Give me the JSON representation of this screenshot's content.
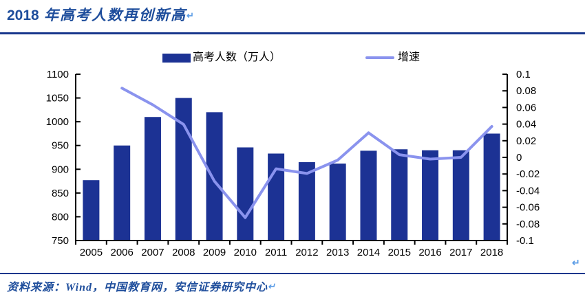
{
  "title": {
    "prefix": "2018",
    "rest": " 年高考人数再创新高",
    "return_mark": "↵"
  },
  "legend": {
    "bar_label": "高考人数（万人）",
    "line_label": "增速"
  },
  "source": {
    "label": "资料来源：Wind，中国教育网，安信证券研究中心",
    "return_mark": "↵"
  },
  "page_return_mark": "↵",
  "colors": {
    "bar": "#1c3294",
    "line": "#8a93ee",
    "accent_text": "#1f4e9c",
    "rule": "#17368c",
    "return_mark": "#5b9ce6",
    "axis": "#000000"
  },
  "chart_data": {
    "type": "bar+line",
    "title": "2018 年高考人数再创新高",
    "categories": [
      "2005",
      "2006",
      "2007",
      "2008",
      "2009",
      "2010",
      "2011",
      "2012",
      "2013",
      "2014",
      "2015",
      "2016",
      "2017",
      "2018"
    ],
    "series": [
      {
        "name": "高考人数（万人）",
        "type": "bar",
        "axis": "left",
        "values": [
          877,
          950,
          1010,
          1050,
          1020,
          946,
          933,
          915,
          912,
          939,
          942,
          940,
          940,
          975
        ]
      },
      {
        "name": "增速",
        "type": "line",
        "axis": "right",
        "values": [
          null,
          0.0832,
          0.0632,
          0.0396,
          -0.0286,
          -0.0725,
          -0.0137,
          -0.0193,
          -0.0033,
          0.0296,
          0.0032,
          -0.0021,
          0.0,
          0.0372
        ]
      }
    ],
    "left_axis": {
      "min": 750,
      "max": 1100,
      "step": 50,
      "tick_labels": [
        "1100",
        "1050",
        "1000",
        "950",
        "900",
        "850",
        "800",
        "750"
      ]
    },
    "right_axis": {
      "min": -0.1,
      "max": 0.1,
      "step": 0.02,
      "tick_labels": [
        "0.1",
        "0.08",
        "0.06",
        "0.04",
        "0.02",
        "0",
        "-0.02",
        "-0.04",
        "-0.06",
        "-0.08",
        "-0.1"
      ]
    },
    "grid": false,
    "legend_position": "top-center",
    "source_note": "资料来源：Wind，中国教育网，安信证券研究中心"
  }
}
